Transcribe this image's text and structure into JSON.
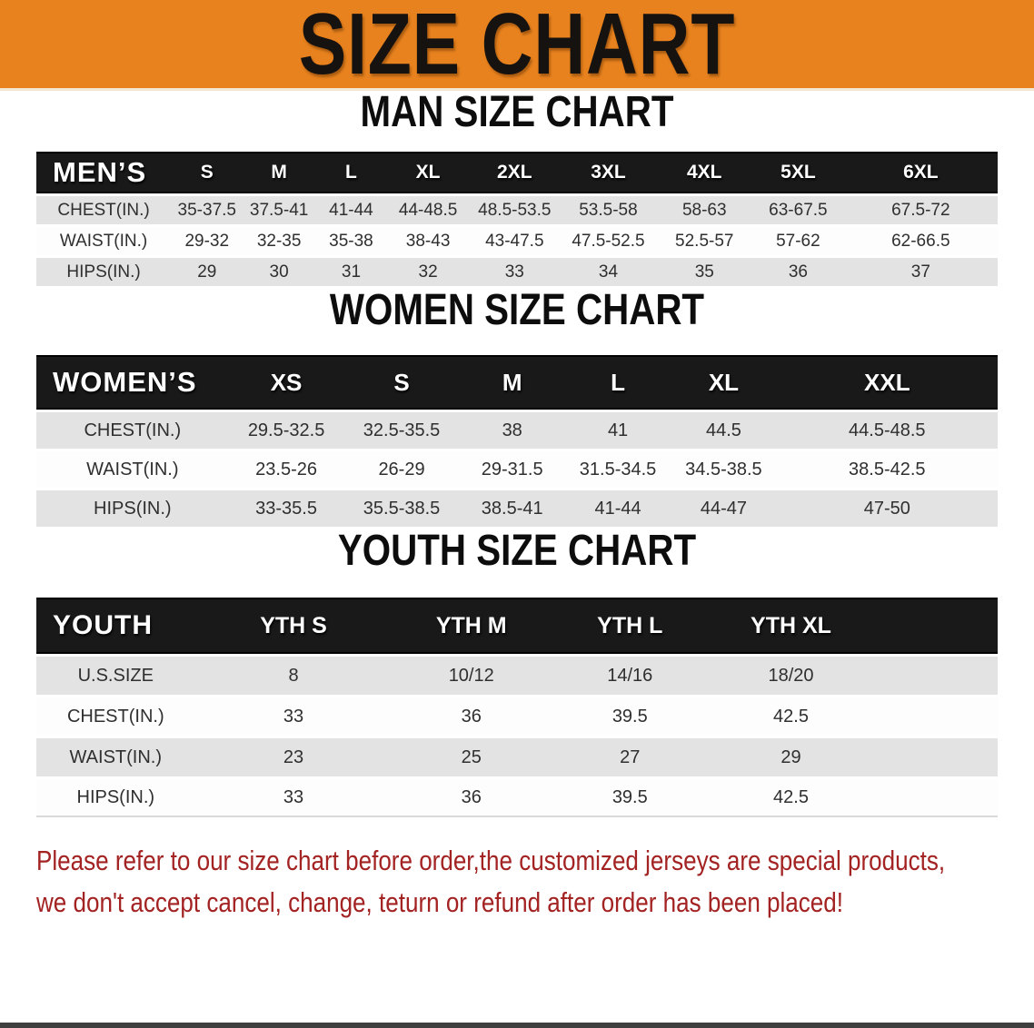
{
  "banner": {
    "title": "SIZE CHART"
  },
  "colors": {
    "accent": "#e8821e",
    "band": "#191919",
    "stripe": "#e3e3e3",
    "disclaimer_red": "#a32222",
    "text": "#2f2f2f"
  },
  "men": {
    "heading": "MAN SIZE CHART",
    "header_label": "MEN’S",
    "sizes": [
      "S",
      "M",
      "L",
      "XL",
      "2XL",
      "3XL",
      "4XL",
      "5XL",
      "6XL"
    ],
    "rows": [
      {
        "label": "CHEST(IN.)",
        "values": [
          "35-37.5",
          "37.5-41",
          "41-44",
          "44-48.5",
          "48.5-53.5",
          "53.5-58",
          "58-63",
          "63-67.5",
          "67.5-72"
        ]
      },
      {
        "label": "WAIST(IN.)",
        "values": [
          "29-32",
          "32-35",
          "35-38",
          "38-43",
          "43-47.5",
          "47.5-52.5",
          "52.5-57",
          "57-62",
          "62-66.5"
        ]
      },
      {
        "label": "HIPS(IN.)",
        "values": [
          "29",
          "30",
          "31",
          "32",
          "33",
          "34",
          "35",
          "36",
          "37"
        ]
      }
    ]
  },
  "women": {
    "heading": "WOMEN SIZE CHART",
    "header_label": "WOMEN’S",
    "sizes": [
      "XS",
      "S",
      "M",
      "L",
      "XL",
      "XXL"
    ],
    "rows": [
      {
        "label": "CHEST(IN.)",
        "values": [
          "29.5-32.5",
          "32.5-35.5",
          "38",
          "41",
          "44.5",
          "44.5-48.5"
        ]
      },
      {
        "label": "WAIST(IN.)",
        "values": [
          "23.5-26",
          "26-29",
          "29-31.5",
          "31.5-34.5",
          "34.5-38.5",
          "38.5-42.5"
        ]
      },
      {
        "label": "HIPS(IN.)",
        "values": [
          "33-35.5",
          "35.5-38.5",
          "38.5-41",
          "41-44",
          "44-47",
          "47-50"
        ]
      }
    ]
  },
  "youth": {
    "heading": "YOUTH SIZE CHART",
    "header_label": "YOUTH",
    "sizes": [
      "YTH S",
      "YTH M",
      "YTH L",
      "YTH XL"
    ],
    "rows": [
      {
        "label": "U.S.SIZE",
        "values": [
          "8",
          "10/12",
          "14/16",
          "18/20"
        ]
      },
      {
        "label": "CHEST(IN.)",
        "values": [
          "33",
          "36",
          "39.5",
          "42.5"
        ]
      },
      {
        "label": "WAIST(IN.)",
        "values": [
          "23",
          "25",
          "27",
          "29"
        ]
      },
      {
        "label": "HIPS(IN.)",
        "values": [
          "33",
          "36",
          "39.5",
          "42.5"
        ]
      }
    ]
  },
  "disclaimer": {
    "line1": "Please refer to our size chart before order,the customized jerseys are special products,",
    "line2": "we don't accept cancel, change, teturn or refund after order has been placed!"
  }
}
